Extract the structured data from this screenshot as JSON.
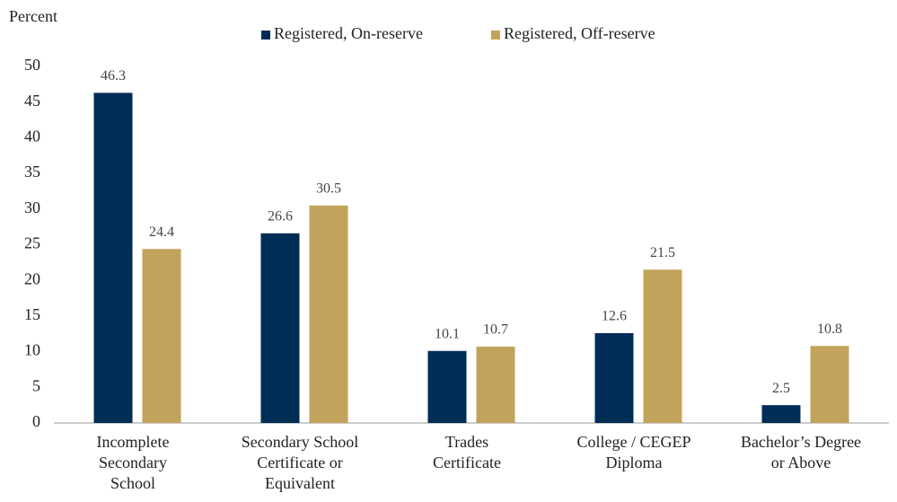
{
  "chart_data": {
    "type": "bar",
    "y_label": "Percent",
    "categories": [
      [
        "Incomplete",
        "Secondary",
        "School"
      ],
      [
        "Secondary School",
        "Certificate or",
        "Equivalent"
      ],
      [
        "Trades",
        "Certificate"
      ],
      [
        "College / CEGEP",
        "Diploma"
      ],
      [
        "Bachelor’s Degree",
        "or Above"
      ]
    ],
    "series": [
      {
        "name": "Registered, On-reserve",
        "color": "#002d56",
        "values": [
          46.3,
          26.6,
          10.1,
          12.6,
          2.5
        ]
      },
      {
        "name": "Registered, Off-reserve",
        "color": "#c2a35b",
        "values": [
          24.4,
          30.5,
          10.7,
          21.5,
          10.8
        ]
      }
    ],
    "ylim": [
      0,
      50
    ],
    "yticks": [
      0,
      5,
      10,
      15,
      20,
      25,
      30,
      35,
      40,
      45,
      50
    ],
    "grid": false,
    "legend": "top"
  }
}
